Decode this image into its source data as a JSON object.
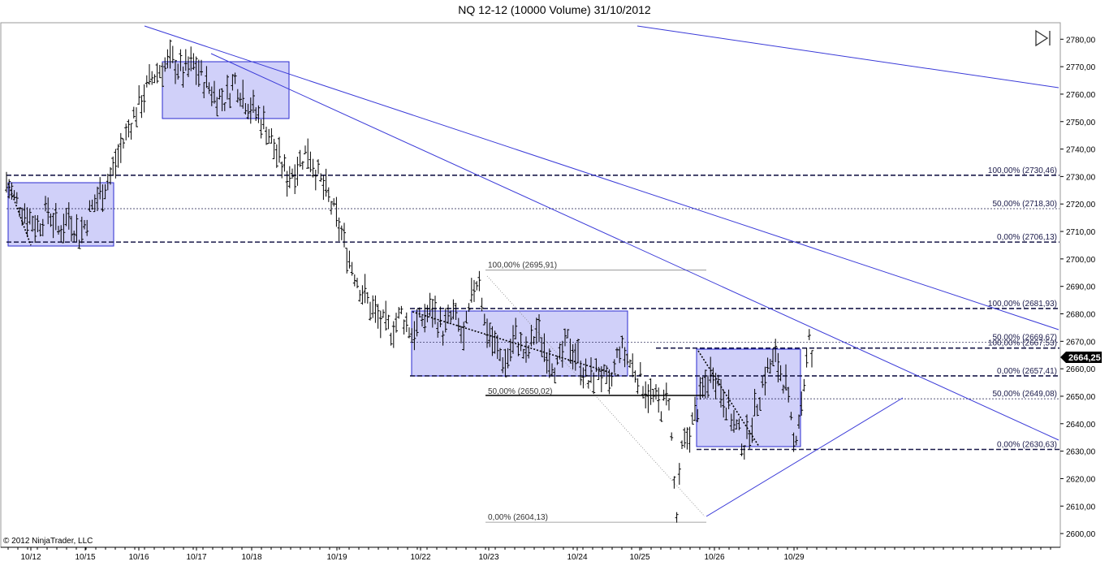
{
  "chart_data": {
    "type": "ohlc",
    "title": "NQ 12-12 (10000 Volume)  31/10/2012",
    "copyright": "© 2012 NinjaTrader, LLC",
    "ylim": [
      2595,
      2786
    ],
    "y_ticks": [
      2600,
      2610,
      2620,
      2630,
      2640,
      2650,
      2660,
      2670,
      2680,
      2690,
      2700,
      2710,
      2720,
      2730,
      2740,
      2750,
      2760,
      2770,
      2780
    ],
    "y_tick_labels": [
      "2600,00",
      "2610,00",
      "2620,00",
      "2630,00",
      "2640,00",
      "2650,00",
      "2660,00",
      "2670,00",
      "2680,00",
      "2690,00",
      "2700,00",
      "2710,00",
      "2720,00",
      "2730,00",
      "2740,00",
      "2750,00",
      "2760,00",
      "2770,00",
      "2780,00"
    ],
    "last_price": "2664,25",
    "x_date_labels": [
      "10/12",
      "10/15",
      "10/16",
      "10/17",
      "10/18",
      "10/19",
      "10/22",
      "10/23",
      "10/24",
      "10/25",
      "10/26",
      "10/29"
    ],
    "price_path": [
      [
        0,
        2728
      ],
      [
        3,
        2722
      ],
      [
        8,
        2716
      ],
      [
        12,
        2712
      ],
      [
        16,
        2718
      ],
      [
        20,
        2710
      ],
      [
        24,
        2716
      ],
      [
        28,
        2708
      ],
      [
        32,
        2717
      ],
      [
        36,
        2724
      ],
      [
        40,
        2730
      ],
      [
        44,
        2740
      ],
      [
        48,
        2750
      ],
      [
        52,
        2758
      ],
      [
        56,
        2766
      ],
      [
        60,
        2770
      ],
      [
        64,
        2772
      ],
      [
        68,
        2768
      ],
      [
        72,
        2771
      ],
      [
        76,
        2765
      ],
      [
        80,
        2760
      ],
      [
        84,
        2758
      ],
      [
        88,
        2765
      ],
      [
        92,
        2758
      ],
      [
        96,
        2753
      ],
      [
        100,
        2748
      ],
      [
        104,
        2738
      ],
      [
        108,
        2730
      ],
      [
        112,
        2734
      ],
      [
        116,
        2740
      ],
      [
        120,
        2730
      ],
      [
        124,
        2722
      ],
      [
        128,
        2712
      ],
      [
        132,
        2700
      ],
      [
        136,
        2690
      ],
      [
        140,
        2683
      ],
      [
        144,
        2677
      ],
      [
        148,
        2674
      ],
      [
        152,
        2680
      ],
      [
        156,
        2673
      ],
      [
        160,
        2678
      ],
      [
        164,
        2682
      ],
      [
        168,
        2674
      ],
      [
        172,
        2680
      ],
      [
        176,
        2670
      ],
      [
        180,
        2690
      ],
      [
        182,
        2694
      ],
      [
        184,
        2677
      ],
      [
        188,
        2668
      ],
      [
        192,
        2662
      ],
      [
        196,
        2672
      ],
      [
        200,
        2664
      ],
      [
        204,
        2674
      ],
      [
        208,
        2666
      ],
      [
        212,
        2660
      ],
      [
        216,
        2670
      ],
      [
        220,
        2664
      ],
      [
        224,
        2655
      ],
      [
        228,
        2660
      ],
      [
        232,
        2652
      ],
      [
        236,
        2668
      ],
      [
        240,
        2662
      ],
      [
        244,
        2656
      ],
      [
        248,
        2650
      ],
      [
        252,
        2646
      ],
      [
        255,
        2650
      ],
      [
        257,
        2618
      ],
      [
        258,
        2606
      ],
      [
        260,
        2630
      ],
      [
        264,
        2640
      ],
      [
        268,
        2652
      ],
      [
        272,
        2660
      ],
      [
        276,
        2650
      ],
      [
        280,
        2640
      ],
      [
        284,
        2632
      ],
      [
        288,
        2644
      ],
      [
        292,
        2658
      ],
      [
        296,
        2664
      ],
      [
        300,
        2654
      ],
      [
        303,
        2632
      ],
      [
        306,
        2648
      ],
      [
        309,
        2670
      ],
      [
        310,
        2664
      ]
    ],
    "level_lines": [
      {
        "label": "100,00% (2730,46)",
        "value": 2730.46
      },
      {
        "label": "50,00% (2718,30)",
        "value": 2718.3
      },
      {
        "label": "0,00% (2706,13)",
        "value": 2706.13
      },
      {
        "label": "100,00% (2681,93)",
        "value": 2681.93
      },
      {
        "label": "50,00% (2669,67)",
        "value": 2669.67
      },
      {
        "label": "100,00% (2667,53)",
        "value": 2667.53
      },
      {
        "label": "0,00% (2657,41)",
        "value": 2657.41
      },
      {
        "label": "50,00% (2649,08)",
        "value": 2649.08
      },
      {
        "label": "0,00% (2630,63)",
        "value": 2630.63
      }
    ],
    "fib_left": [
      {
        "label": "100,00% (2695,91)",
        "value": 2695.91
      },
      {
        "label": "50,00% (2650,02)",
        "value": 2650.02
      },
      {
        "label": "0,00% (2604,13)",
        "value": 2604.13
      }
    ],
    "colors": {
      "box_fill": "#c8c8f8",
      "box_edge": "#2a2ad0",
      "trend": "#3a3ad8",
      "level": "#1a1a4a",
      "bars": "#000000"
    }
  }
}
